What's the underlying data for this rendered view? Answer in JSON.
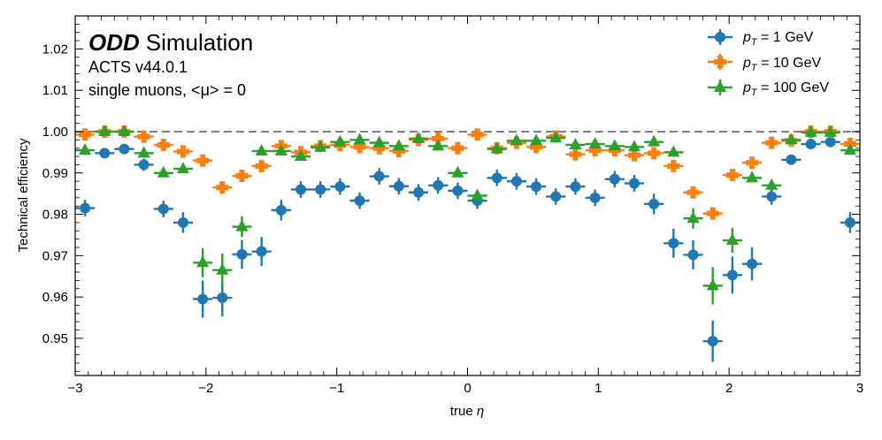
{
  "chart_data": {
    "type": "scatter",
    "title": "",
    "annotations": {
      "experiment": "ODD",
      "label": "Simulation",
      "version": "ACTS v44.0.1",
      "sample": "single muons, <μ> = 0"
    },
    "xlabel_prefix": "true ",
    "xlabel_symbol": "η",
    "ylabel": "Technical efficiency",
    "xlim": [
      -3,
      3
    ],
    "ylim": [
      0.941,
      1.028
    ],
    "xticks": [
      -3,
      -2,
      -1,
      0,
      1,
      2,
      3
    ],
    "xtick_labels": [
      "−3",
      "−2",
      "−1",
      "0",
      "1",
      "2",
      "3"
    ],
    "yticks": [
      0.95,
      0.96,
      0.97,
      0.98,
      0.99,
      1.0,
      1.01,
      1.02
    ],
    "ytick_labels": [
      "0.95",
      "0.96",
      "0.97",
      "0.98",
      "0.99",
      "1.00",
      "1.01",
      "1.02"
    ],
    "reference_line": 1.0,
    "bin_half_width": 0.075,
    "legend_position": "top-right",
    "series": [
      {
        "name": "p_T = 1 GeV",
        "legend_p": "p",
        "legend_sub": "T",
        "legend_value": " = 1 GeV",
        "color": "#1f77b4",
        "marker": "circle",
        "x": [
          -2.925,
          -2.775,
          -2.625,
          -2.475,
          -2.325,
          -2.175,
          -2.025,
          -1.875,
          -1.725,
          -1.575,
          -1.425,
          -1.275,
          -1.125,
          -0.975,
          -0.825,
          -0.675,
          -0.525,
          -0.375,
          -0.225,
          -0.075,
          0.075,
          0.225,
          0.375,
          0.525,
          0.675,
          0.825,
          0.975,
          1.125,
          1.275,
          1.425,
          1.575,
          1.725,
          1.875,
          2.025,
          2.175,
          2.325,
          2.475,
          2.625,
          2.775,
          2.925
        ],
        "y": [
          0.9815,
          0.9948,
          0.9958,
          0.992,
          0.9813,
          0.978,
          0.9595,
          0.9598,
          0.9703,
          0.971,
          0.981,
          0.986,
          0.986,
          0.9867,
          0.9833,
          0.9892,
          0.9868,
          0.9853,
          0.987,
          0.9857,
          0.9833,
          0.9888,
          0.988,
          0.9867,
          0.9843,
          0.9867,
          0.984,
          0.9885,
          0.9875,
          0.9825,
          0.973,
          0.9702,
          0.9493,
          0.9653,
          0.968,
          0.9843,
          0.9932,
          0.997,
          0.9975,
          0.978
        ],
        "yerr": [
          0.002,
          0.0012,
          0.001,
          0.0015,
          0.002,
          0.0025,
          0.0045,
          0.0045,
          0.0035,
          0.0035,
          0.0025,
          0.002,
          0.002,
          0.002,
          0.002,
          0.002,
          0.002,
          0.002,
          0.002,
          0.002,
          0.002,
          0.002,
          0.002,
          0.002,
          0.002,
          0.002,
          0.002,
          0.002,
          0.002,
          0.0025,
          0.0035,
          0.0035,
          0.005,
          0.0045,
          0.004,
          0.002,
          0.0012,
          0.001,
          0.001,
          0.0025
        ]
      },
      {
        "name": "p_T = 10 GeV",
        "legend_p": "p",
        "legend_sub": "T",
        "legend_value": " = 10 GeV",
        "color": "#ff7f0e",
        "marker": "plus",
        "x": [
          -2.925,
          -2.775,
          -2.625,
          -2.475,
          -2.325,
          -2.175,
          -2.025,
          -1.875,
          -1.725,
          -1.575,
          -1.425,
          -1.275,
          -1.125,
          -0.975,
          -0.825,
          -0.675,
          -0.525,
          -0.375,
          -0.225,
          -0.075,
          0.075,
          0.225,
          0.375,
          0.525,
          0.675,
          0.825,
          0.975,
          1.125,
          1.275,
          1.425,
          1.575,
          1.725,
          1.875,
          2.025,
          2.175,
          2.325,
          2.475,
          2.625,
          2.775,
          2.925
        ],
        "y": [
          0.9993,
          1.0,
          1.0,
          0.9988,
          0.9968,
          0.9952,
          0.993,
          0.9865,
          0.9893,
          0.9917,
          0.9965,
          0.995,
          0.9965,
          0.9968,
          0.9963,
          0.996,
          0.9953,
          0.998,
          0.9983,
          0.996,
          0.9993,
          0.996,
          0.9973,
          0.9963,
          0.9988,
          0.9945,
          0.9955,
          0.9955,
          0.9943,
          0.9948,
          0.9917,
          0.9853,
          0.9802,
          0.9895,
          0.9925,
          0.9973,
          0.9978,
          1.0,
          1.0,
          0.997
        ],
        "yerr": [
          0.0004,
          0.0003,
          0.0003,
          0.0006,
          0.0008,
          0.0009,
          0.001,
          0.0014,
          0.0012,
          0.0011,
          0.0007,
          0.0008,
          0.0007,
          0.0007,
          0.0007,
          0.0007,
          0.0008,
          0.0005,
          0.0005,
          0.0007,
          0.0004,
          0.0007,
          0.0006,
          0.0007,
          0.0004,
          0.0008,
          0.0007,
          0.0007,
          0.0008,
          0.0008,
          0.0011,
          0.0014,
          0.0015,
          0.0011,
          0.0009,
          0.0006,
          0.0005,
          0.0003,
          0.0003,
          0.0006
        ]
      },
      {
        "name": "p_T = 100 GeV",
        "legend_p": "p",
        "legend_sub": "T",
        "legend_value": " = 100 GeV",
        "color": "#2ca02c",
        "marker": "triangle",
        "x": [
          -2.925,
          -2.775,
          -2.625,
          -2.475,
          -2.325,
          -2.175,
          -2.025,
          -1.875,
          -1.725,
          -1.575,
          -1.425,
          -1.275,
          -1.125,
          -0.975,
          -0.825,
          -0.675,
          -0.525,
          -0.375,
          -0.225,
          -0.075,
          0.075,
          0.225,
          0.375,
          0.525,
          0.675,
          0.825,
          0.975,
          1.125,
          1.275,
          1.425,
          1.575,
          1.725,
          1.875,
          2.025,
          2.175,
          2.325,
          2.475,
          2.625,
          2.775,
          2.925
        ],
        "y": [
          0.9955,
          1.0,
          1.0,
          0.9948,
          0.99,
          0.991,
          0.9683,
          0.9665,
          0.977,
          0.9953,
          0.9953,
          0.994,
          0.9962,
          0.9975,
          0.998,
          0.9973,
          0.9965,
          0.9983,
          0.9965,
          0.99,
          0.9845,
          0.9958,
          0.9978,
          0.9978,
          0.9985,
          0.9968,
          0.997,
          0.9965,
          0.9963,
          0.9975,
          0.995,
          0.979,
          0.9627,
          0.9737,
          0.9888,
          0.987,
          0.998,
          0.9998,
          0.9998,
          0.9955
        ],
        "yerr": [
          0.0005,
          0.0002,
          0.0002,
          0.0006,
          0.0009,
          0.0009,
          0.0035,
          0.004,
          0.0025,
          0.0006,
          0.0006,
          0.0007,
          0.0006,
          0.0005,
          0.0004,
          0.0005,
          0.0006,
          0.0004,
          0.0006,
          0.0009,
          0.0012,
          0.0006,
          0.0005,
          0.0005,
          0.0004,
          0.0006,
          0.0005,
          0.0006,
          0.0006,
          0.0005,
          0.0007,
          0.0025,
          0.0045,
          0.003,
          0.001,
          0.0012,
          0.0004,
          0.0002,
          0.0002,
          0.0006
        ]
      }
    ]
  }
}
